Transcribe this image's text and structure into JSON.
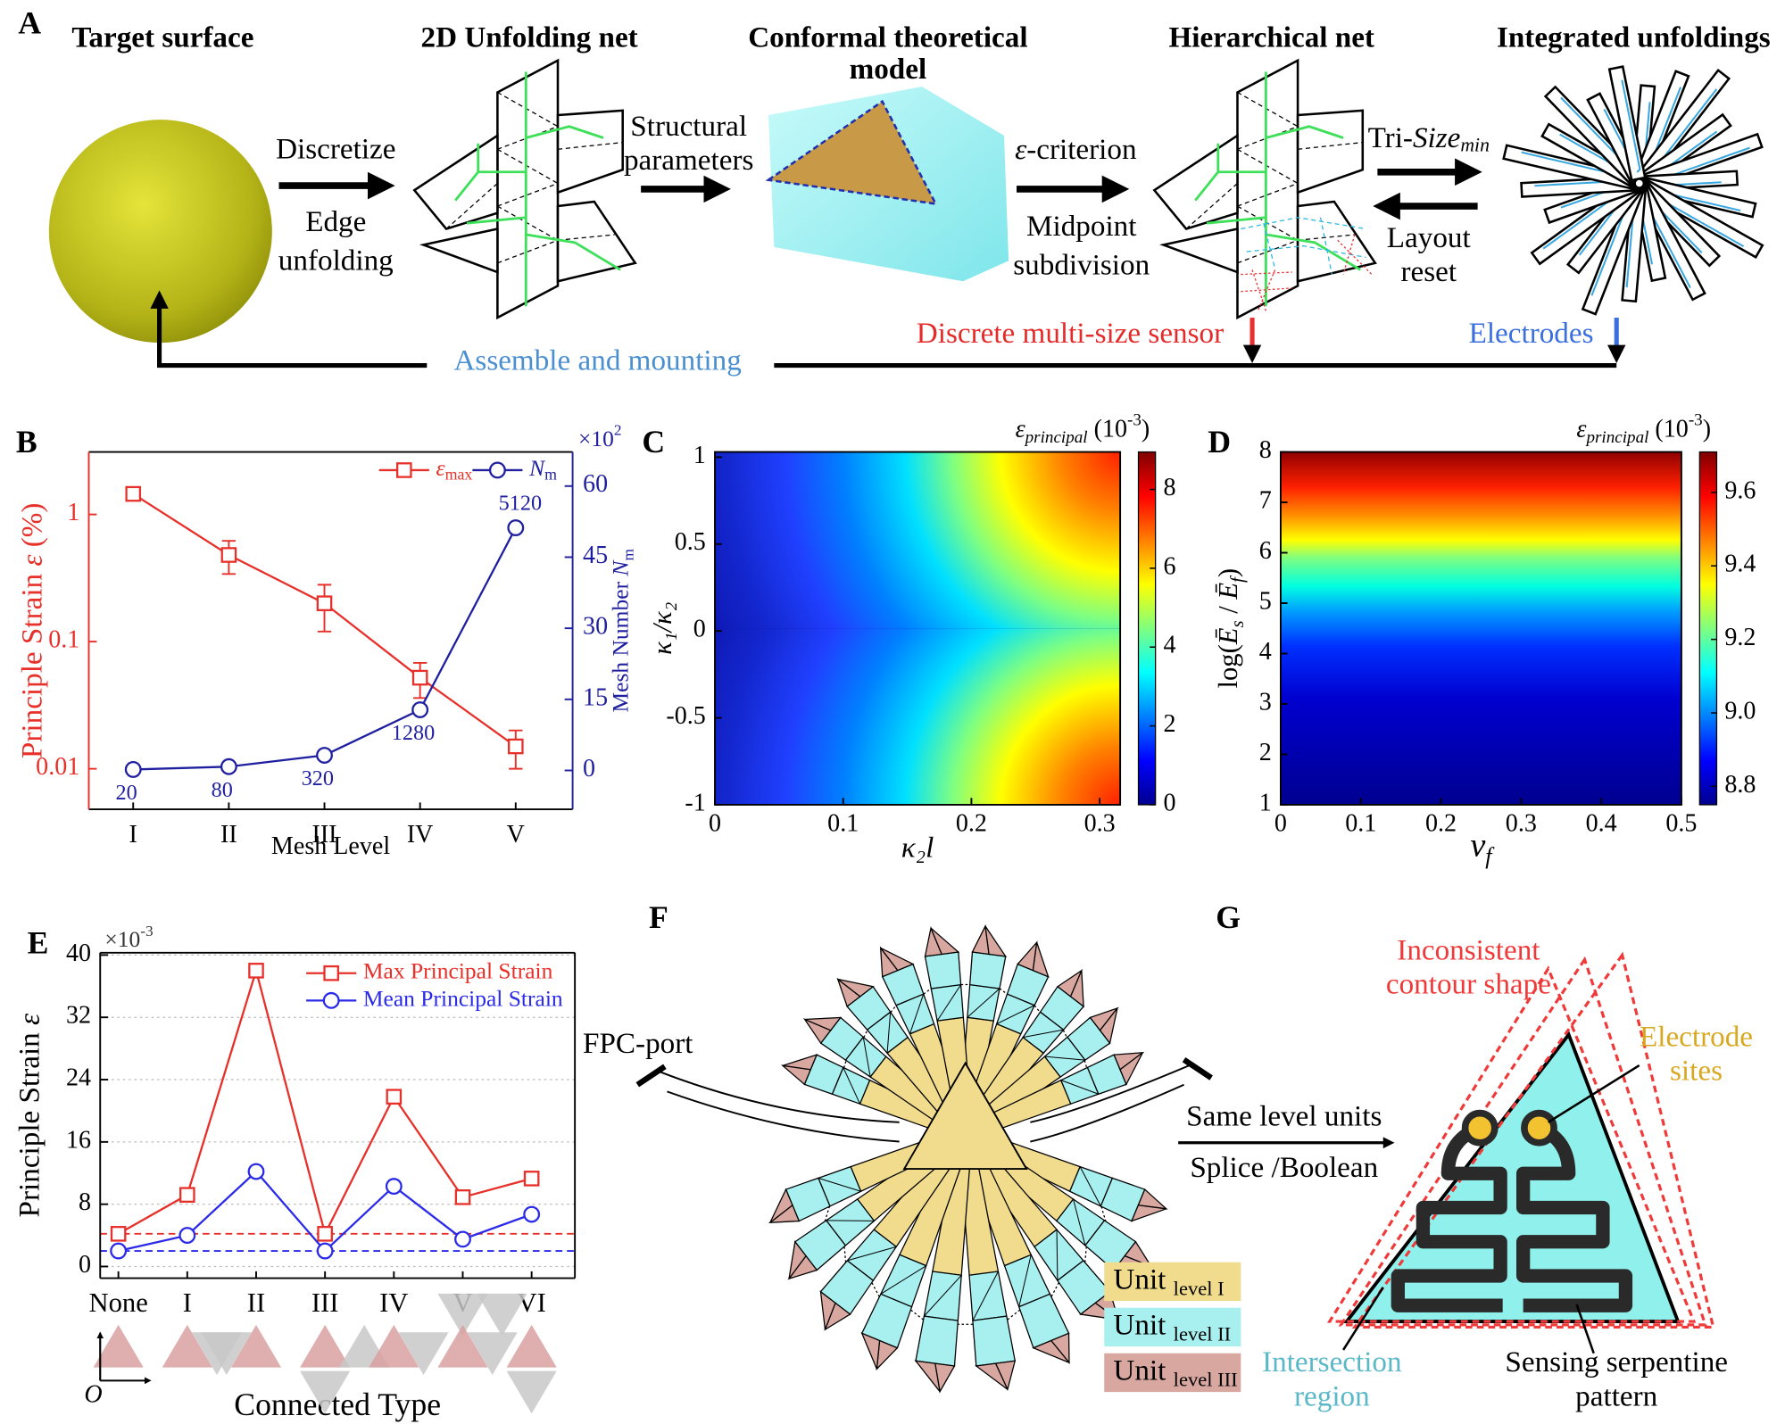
{
  "panel_a": {
    "label": "A",
    "target": "Target surface",
    "net": "2D Unfolding net",
    "model": [
      "Conformal theoretical",
      "model"
    ],
    "hier": "Hierarchical net",
    "integrated": "Integrated unfoldings",
    "discretize": "Discretize",
    "edge": [
      "Edge",
      "unfolding"
    ],
    "structural": [
      "Structural",
      "parameters"
    ],
    "criterion": [
      "ε",
      "-criterion"
    ],
    "midpoint": [
      "Midpoint",
      "subdivision"
    ],
    "tri_size": [
      "Tri-",
      "Size",
      "min"
    ],
    "layout": [
      "Layout",
      "reset"
    ],
    "sensor": "Discrete multi-size sensor",
    "electrodes": "Electrodes",
    "assemble": "Assemble and mounting"
  },
  "chart_data": [
    {
      "label": "B",
      "type": "line",
      "categories": [
        "I",
        "II",
        "III",
        "IV",
        "V"
      ],
      "xlabel": "Mesh Level",
      "ylabel": [
        "Principle Strain ",
        "ε",
        " (%)"
      ],
      "y2label": [
        "Mesh Number ",
        "N",
        "m"
      ],
      "y_color": "#e8302a",
      "y2_color": "#1f1fa0",
      "y_scale": "log",
      "ylim": [
        0.0048,
        3.1
      ],
      "yticks": [
        0.01,
        0.1,
        1
      ],
      "y2lim": [
        -8.2,
        67.2
      ],
      "y2ticks": [
        0,
        15,
        30,
        45,
        60
      ],
      "multiplier": [
        "×10",
        "2"
      ],
      "legend": "upper right",
      "series": [
        {
          "name": "ε",
          "name_sub": "max",
          "color": "#e8302a",
          "marker": "square",
          "values": [
            1.45,
            0.48,
            0.2,
            0.052,
            0.015
          ],
          "errors": [
            0.05,
            0.14,
            0.08,
            0.016,
            0.005
          ]
        },
        {
          "name": "N",
          "name_sub": "m",
          "color": "#1f1fa0",
          "marker": "circle",
          "axis": "y2",
          "values": [
            0.2,
            0.8,
            3.2,
            12.8,
            51.2
          ],
          "value_labels": [
            "20",
            "80",
            "320",
            "1280",
            "5120"
          ]
        }
      ]
    },
    {
      "label": "C",
      "type": "heatmap",
      "xlabel": "κ₂l",
      "ylabel": "κ₁/κ₂",
      "colormap": "jet",
      "xlim": [
        0,
        0.316
      ],
      "xticks": [
        0,
        0.1,
        0.2,
        0.3
      ],
      "ylim": [
        -1,
        1.03
      ],
      "yticks": [
        1,
        0.5,
        0,
        -0.5,
        -1
      ],
      "colorbar_label": [
        "ε",
        "principal",
        " (10",
        "-3",
        ")"
      ],
      "zlim": [
        0,
        8.95
      ],
      "zticks": [
        0,
        2,
        4,
        6,
        8
      ]
    },
    {
      "label": "D",
      "type": "heatmap",
      "xlabel": [
        "v",
        "f"
      ],
      "ylabel": [
        "log(",
        "Ē",
        "s",
        " / ",
        "Ē",
        "f",
        ")"
      ],
      "colormap": "jet",
      "xlim": [
        0,
        0.5
      ],
      "xticks": [
        0,
        0.1,
        0.2,
        0.3,
        0.4,
        0.5
      ],
      "ylim": [
        1,
        8
      ],
      "yticks": [
        1,
        2,
        3,
        4,
        5,
        6,
        7,
        8
      ],
      "colorbar_label": [
        "ε",
        "principal",
        " (10",
        "-3",
        ")"
      ],
      "zlim": [
        8.75,
        9.71
      ],
      "zticks": [
        8.8,
        {
          "value": 9,
          "label": "9.0"
        },
        9.2,
        9.4,
        9.6
      ]
    },
    {
      "label": "E",
      "type": "line",
      "categories": [
        "None",
        "I",
        "II",
        "III",
        "IV",
        "V",
        "VI"
      ],
      "xlabel": "Connected Type",
      "ylabel": [
        "Principle Strain ",
        "ε"
      ],
      "ylim": [
        -1.5,
        40.3
      ],
      "yticks": [
        0,
        8,
        16,
        24,
        32,
        40
      ],
      "grid": true,
      "multiplier": [
        "×10",
        "-3"
      ],
      "legend": "upper right",
      "origin_label": "O",
      "reference_lines": [
        {
          "value": 4.2,
          "color": "#e8302a"
        },
        {
          "value": 2.0,
          "color": "#2a2ae8"
        }
      ],
      "series": [
        {
          "name": "Max Principal Strain",
          "color": "#e8302a",
          "marker": "square",
          "values": [
            4.2,
            9.2,
            38,
            4.2,
            21.8,
            8.9,
            11.3
          ]
        },
        {
          "name": "Mean Principal Strain",
          "color": "#2a2ae8",
          "marker": "circle",
          "values": [
            2.0,
            4.0,
            12.2,
            2.0,
            10.3,
            3.5,
            6.7
          ]
        }
      ]
    }
  ],
  "panel_f": {
    "label": "F",
    "fpc_port": "FPC-port",
    "arrow_top": "Same level units",
    "arrow_bottom": "Splice /Boolean",
    "units": [
      {
        "name": [
          "Unit ",
          "level I"
        ],
        "color": "#f0dc8c"
      },
      {
        "name": [
          "Unit ",
          "level II"
        ],
        "color": "#a8f0f0"
      },
      {
        "name": [
          "Unit ",
          "level III"
        ],
        "color": "#d8a8a0"
      }
    ]
  },
  "panel_g": {
    "label": "G",
    "contour": [
      "Inconsistent",
      "contour shape"
    ],
    "electrode": [
      "Electrode",
      "sites"
    ],
    "intersection": [
      "Intersection",
      "region"
    ],
    "serpentine": [
      "Sensing serpentine",
      "pattern"
    ]
  }
}
